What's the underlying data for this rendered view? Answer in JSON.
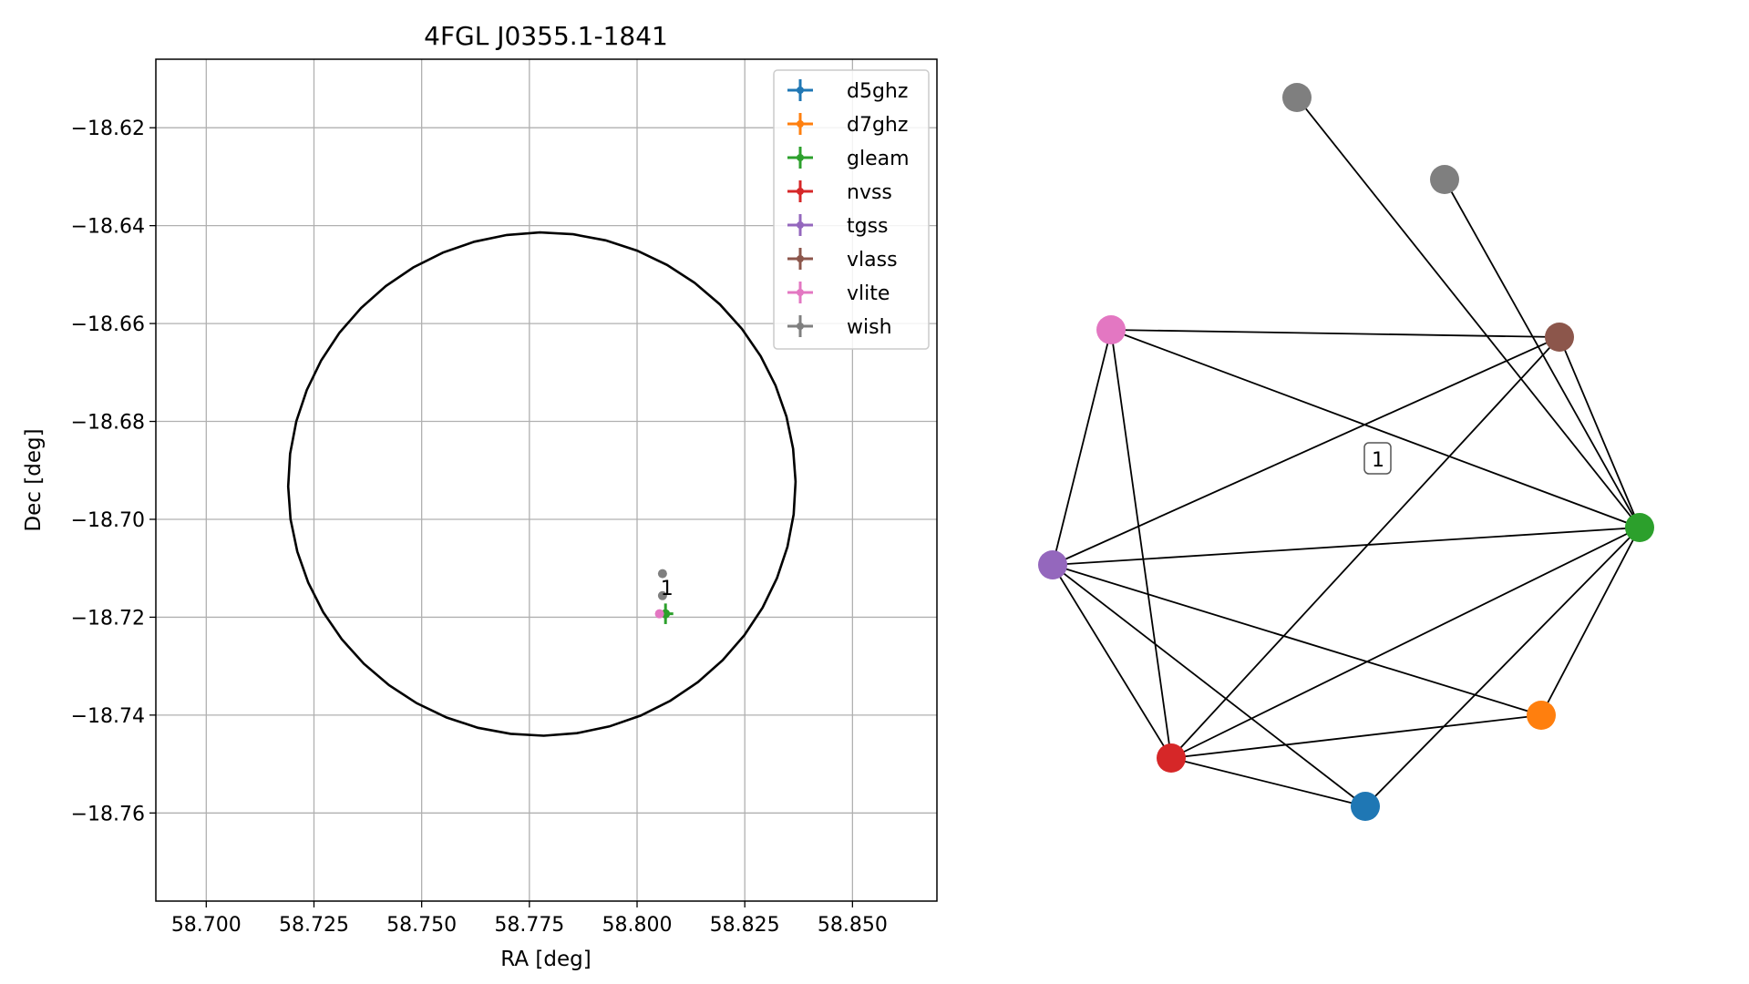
{
  "chart_data": [
    {
      "type": "scatter",
      "title": "4FGL J0355.1-1841",
      "xlabel": "RA [deg]",
      "ylabel": "Dec [deg]",
      "xlim": [
        58.6883,
        58.8696
      ],
      "ylim": [
        -18.778,
        -18.606
      ],
      "xticks": [
        58.7,
        58.725,
        58.75,
        58.775,
        58.8,
        58.825,
        58.85
      ],
      "xtick_labels": [
        "58.700",
        "58.725",
        "58.750",
        "58.775",
        "58.800",
        "58.825",
        "58.850"
      ],
      "yticks": [
        -18.62,
        -18.64,
        -18.66,
        -18.68,
        -18.7,
        -18.72,
        -18.74,
        -18.76
      ],
      "ytick_labels": [
        "−18.62",
        "−18.64",
        "−18.66",
        "−18.68",
        "−18.70",
        "−18.72",
        "−18.74",
        "−18.76"
      ],
      "grid": true,
      "legend_position": "top-right",
      "ellipse": {
        "center": [
          58.7779,
          -18.6928
        ],
        "ra_semi_axis": 0.0589,
        "dec_semi_axis": 0.0514,
        "tilt_deg": -8,
        "color": "#000000"
      },
      "series": [
        {
          "name": "d5ghz",
          "color": "#1f77b4",
          "points": []
        },
        {
          "name": "d7ghz",
          "color": "#ff7f0e",
          "points": []
        },
        {
          "name": "gleam",
          "color": "#2ca02c",
          "points": [
            {
              "x": 58.8066,
              "y": -18.7193,
              "xerr": 0.0018,
              "yerr": 0.0021
            }
          ]
        },
        {
          "name": "nvss",
          "color": "#d62728",
          "points": []
        },
        {
          "name": "tgss",
          "color": "#9467bd",
          "points": []
        },
        {
          "name": "vlass",
          "color": "#8c564b",
          "points": []
        },
        {
          "name": "vlite",
          "color": "#e377c2",
          "points": [
            {
              "x": 58.8052,
              "y": -18.7193,
              "xerr": 0,
              "yerr": 0
            }
          ]
        },
        {
          "name": "wish",
          "color": "#7f7f7f",
          "points": [
            {
              "x": 58.8059,
              "y": -18.7111,
              "xerr": 0,
              "yerr": 0
            },
            {
              "x": 58.8059,
              "y": -18.7156,
              "xerr": 0,
              "yerr": 0
            }
          ]
        }
      ],
      "annotations": [
        {
          "text": "1",
          "x": 58.8065,
          "y": -18.7147
        }
      ]
    },
    {
      "type": "network",
      "nodes": [
        {
          "id": "wish_1",
          "color": "#7f7f7f"
        },
        {
          "id": "wish_2",
          "color": "#7f7f7f"
        },
        {
          "id": "vlass",
          "color": "#8c564b"
        },
        {
          "id": "vlite",
          "color": "#e377c2"
        },
        {
          "id": "gleam",
          "color": "#2ca02c"
        },
        {
          "id": "tgss",
          "color": "#9467bd"
        },
        {
          "id": "d7ghz",
          "color": "#ff7f0e"
        },
        {
          "id": "nvss",
          "color": "#d62728"
        },
        {
          "id": "d5ghz",
          "color": "#1f77b4"
        }
      ],
      "edges": [
        [
          "wish_1",
          "gleam"
        ],
        [
          "wish_2",
          "gleam"
        ],
        [
          "vlite",
          "vlass"
        ],
        [
          "vlite",
          "gleam"
        ],
        [
          "vlite",
          "tgss"
        ],
        [
          "vlite",
          "nvss"
        ],
        [
          "vlass",
          "gleam"
        ],
        [
          "vlass",
          "tgss"
        ],
        [
          "vlass",
          "nvss"
        ],
        [
          "gleam",
          "tgss"
        ],
        [
          "gleam",
          "nvss"
        ],
        [
          "gleam",
          "d7ghz"
        ],
        [
          "gleam",
          "d5ghz"
        ],
        [
          "tgss",
          "nvss"
        ],
        [
          "tgss",
          "d7ghz"
        ],
        [
          "tgss",
          "d5ghz"
        ],
        [
          "nvss",
          "d7ghz"
        ],
        [
          "nvss",
          "d5ghz"
        ]
      ],
      "cluster_label": "1"
    }
  ]
}
